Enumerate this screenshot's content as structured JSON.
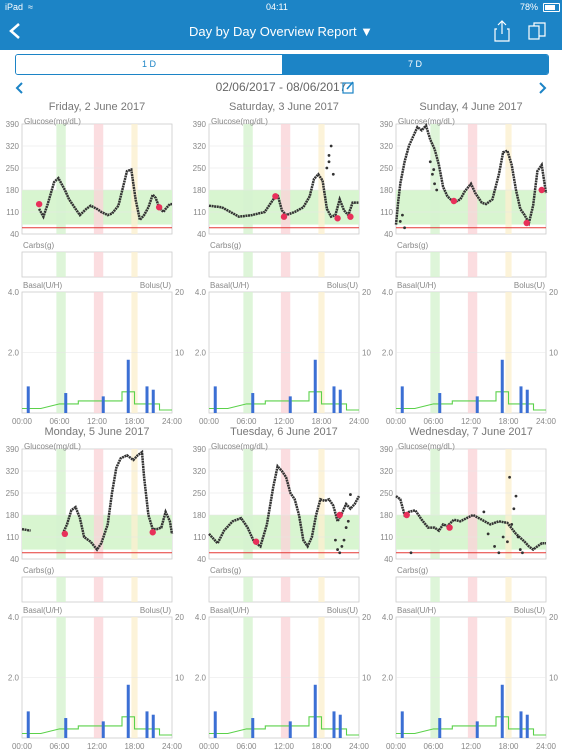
{
  "status": {
    "device": "iPad",
    "wifi_icon": "wifi-icon",
    "time": "04:11",
    "battery": "78%"
  },
  "nav": {
    "title": "Day by Day Overview Report ▼",
    "back_icon": "back-chevron-icon",
    "share_icon": "share-icon",
    "pages_icon": "pages-icon"
  },
  "tabs": [
    {
      "label": "1 D",
      "active": false
    },
    {
      "label": "7 D",
      "active": true
    }
  ],
  "date_range": "02/06/2017 - 08/06/2017",
  "labels": {
    "glucose": "Glucose(mg/dL)",
    "carbs": "Carbs(g)",
    "basal": "Basal(U/H)",
    "bolus": "Bolus(U)"
  },
  "glucose_ticks": [
    "390",
    "320",
    "250",
    "180",
    "110",
    "40"
  ],
  "basal_ticks": [
    "4.0",
    "2.0"
  ],
  "bolus_ticks": [
    "20",
    "10"
  ],
  "time_ticks": [
    "00:00",
    "06:00",
    "12:00",
    "18:00",
    "24:00"
  ],
  "colors": {
    "accent": "#1c84c6",
    "target_band": "#d8f5d0",
    "low_line": "#e53935",
    "glucose": "#333333",
    "basal": "#5bd14a",
    "bolus": "#3b6fd4",
    "highlight": "#e8305a"
  },
  "days": [
    {
      "title": "Friday, 2 June 2017",
      "glucose": [
        [
          0,
          null
        ],
        [
          0.2,
          null
        ],
        [
          0.35,
          null
        ],
        [
          0.4,
          120
        ],
        [
          0.5,
          95
        ],
        [
          0.6,
          135
        ],
        [
          0.75,
          205
        ],
        [
          0.85,
          218
        ],
        [
          1,
          180
        ],
        [
          1.1,
          150
        ],
        [
          1.25,
          120
        ],
        [
          1.35,
          100
        ],
        [
          1.5,
          120
        ],
        [
          1.6,
          130
        ],
        [
          1.75,
          120
        ],
        [
          1.85,
          110
        ],
        [
          2,
          100
        ],
        [
          2.1,
          105
        ],
        [
          2.25,
          130
        ],
        [
          2.35,
          185
        ],
        [
          2.45,
          240
        ],
        [
          2.55,
          245
        ],
        [
          2.65,
          150
        ],
        [
          2.75,
          85
        ],
        [
          2.85,
          100
        ],
        [
          2.95,
          125
        ],
        [
          3.05,
          165
        ],
        [
          3.12,
          155
        ],
        [
          3.2,
          125
        ],
        [
          3.3,
          110
        ],
        [
          3.35,
          120
        ],
        [
          3.45,
          135
        ],
        [
          3.5,
          135
        ]
      ],
      "pins": [
        [
          0.4,
          135
        ],
        [
          3.2,
          125
        ]
      ]
    },
    {
      "title": "Saturday, 3 June 2017",
      "glucose": [
        [
          0,
          130
        ],
        [
          0.3,
          125
        ],
        [
          0.7,
          95
        ],
        [
          1,
          100
        ],
        [
          1.3,
          110
        ],
        [
          1.5,
          150
        ],
        [
          1.6,
          165
        ],
        [
          1.7,
          115
        ],
        [
          1.8,
          100
        ],
        [
          2,
          110
        ],
        [
          2.2,
          125
        ],
        [
          2.35,
          160
        ],
        [
          2.45,
          215
        ],
        [
          2.55,
          230
        ],
        [
          2.65,
          210
        ],
        [
          2.75,
          120
        ],
        [
          2.85,
          95
        ],
        [
          2.95,
          100
        ],
        [
          3.05,
          150
        ],
        [
          3.15,
          115
        ],
        [
          3.25,
          100
        ],
        [
          3.35,
          140
        ],
        [
          3.5,
          140
        ]
      ],
      "pins": [
        [
          1.55,
          160
        ],
        [
          1.75,
          95
        ],
        [
          3.0,
          90
        ],
        [
          3.3,
          95
        ]
      ],
      "scatter": [
        [
          2.75,
          250
        ],
        [
          2.8,
          290
        ],
        [
          2.85,
          320
        ],
        [
          2.8,
          270
        ],
        [
          2.9,
          230
        ]
      ]
    },
    {
      "title": "Sunday, 4 June 2017",
      "glucose": [
        [
          0,
          70
        ],
        [
          0.05,
          140
        ],
        [
          0.1,
          200
        ],
        [
          0.2,
          270
        ],
        [
          0.3,
          320
        ],
        [
          0.4,
          350
        ],
        [
          0.5,
          380
        ],
        [
          0.6,
          370
        ],
        [
          0.7,
          385
        ],
        [
          0.8,
          340
        ],
        [
          0.9,
          310
        ],
        [
          1.0,
          260
        ],
        [
          1.1,
          190
        ],
        [
          1.2,
          160
        ],
        [
          1.35,
          140
        ],
        [
          1.5,
          150
        ],
        [
          1.6,
          175
        ],
        [
          1.75,
          200
        ],
        [
          1.85,
          170
        ],
        [
          2.0,
          140
        ],
        [
          2.1,
          135
        ],
        [
          2.25,
          150
        ],
        [
          2.4,
          230
        ],
        [
          2.5,
          300
        ],
        [
          2.6,
          305
        ],
        [
          2.7,
          260
        ],
        [
          2.8,
          180
        ],
        [
          2.9,
          120
        ],
        [
          3.0,
          100
        ],
        [
          3.1,
          75
        ],
        [
          3.2,
          130
        ],
        [
          3.3,
          240
        ],
        [
          3.4,
          260
        ],
        [
          3.5,
          170
        ]
      ],
      "pins": [
        [
          1.35,
          145
        ],
        [
          3.05,
          75
        ],
        [
          3.4,
          180
        ]
      ],
      "scatter": [
        [
          0.1,
          80
        ],
        [
          0.15,
          100
        ],
        [
          0.2,
          60
        ],
        [
          0.85,
          230
        ],
        [
          0.9,
          200
        ],
        [
          0.95,
          180
        ],
        [
          0.8,
          270
        ],
        [
          0.88,
          245
        ]
      ]
    },
    {
      "title": "Monday, 5 June 2017",
      "glucose": [
        [
          0,
          135
        ],
        [
          0.2,
          130
        ],
        [
          0.3,
          null
        ],
        [
          0.9,
          null
        ],
        [
          0.95,
          120
        ],
        [
          1.05,
          150
        ],
        [
          1.15,
          195
        ],
        [
          1.25,
          205
        ],
        [
          1.35,
          170
        ],
        [
          1.45,
          110
        ],
        [
          1.6,
          95
        ],
        [
          1.75,
          70
        ],
        [
          1.85,
          90
        ],
        [
          2.0,
          150
        ],
        [
          2.1,
          250
        ],
        [
          2.2,
          330
        ],
        [
          2.3,
          360
        ],
        [
          2.45,
          370
        ],
        [
          2.6,
          355
        ],
        [
          2.7,
          370
        ],
        [
          2.8,
          380
        ],
        [
          2.85,
          300
        ],
        [
          2.95,
          180
        ],
        [
          3.05,
          135
        ],
        [
          3.15,
          135
        ],
        [
          3.25,
          140
        ],
        [
          3.35,
          190
        ],
        [
          3.45,
          160
        ],
        [
          3.5,
          120
        ]
      ],
      "pins": [
        [
          1.0,
          120
        ],
        [
          3.05,
          125
        ]
      ]
    },
    {
      "title": "Tuesday, 6 June 2017",
      "glucose": [
        [
          0,
          120
        ],
        [
          0.2,
          90
        ],
        [
          0.35,
          130
        ],
        [
          0.55,
          160
        ],
        [
          0.75,
          170
        ],
        [
          0.9,
          140
        ],
        [
          1.05,
          95
        ],
        [
          1.2,
          80
        ],
        [
          1.35,
          150
        ],
        [
          1.5,
          270
        ],
        [
          1.6,
          335
        ],
        [
          1.7,
          320
        ],
        [
          1.8,
          300
        ],
        [
          1.9,
          250
        ],
        [
          2.0,
          230
        ],
        [
          2.1,
          180
        ],
        [
          2.2,
          100
        ],
        [
          2.3,
          80
        ],
        [
          2.4,
          110
        ],
        [
          2.5,
          180
        ],
        [
          2.6,
          230
        ],
        [
          2.7,
          225
        ],
        [
          2.8,
          230
        ],
        [
          2.9,
          210
        ],
        [
          3.0,
          160
        ],
        [
          3.1,
          185
        ],
        [
          3.2,
          215
        ],
        [
          3.3,
          200
        ],
        [
          3.4,
          215
        ],
        [
          3.5,
          240
        ]
      ],
      "pins": [
        [
          1.1,
          95
        ],
        [
          3.05,
          180
        ]
      ],
      "scatter": [
        [
          2.95,
          100
        ],
        [
          3.0,
          70
        ],
        [
          3.05,
          60
        ],
        [
          3.1,
          80
        ],
        [
          3.15,
          100
        ],
        [
          3.2,
          140
        ],
        [
          3.25,
          160
        ],
        [
          3.3,
          245
        ]
      ]
    },
    {
      "title": "Wednesday, 7 June 2017",
      "glucose": [
        [
          0,
          240
        ],
        [
          0.1,
          230
        ],
        [
          0.2,
          180
        ],
        [
          0.3,
          190
        ],
        [
          0.45,
          195
        ],
        [
          0.6,
          165
        ],
        [
          0.75,
          140
        ],
        [
          0.9,
          140
        ],
        [
          1.0,
          130
        ],
        [
          1.1,
          150
        ],
        [
          1.2,
          145
        ],
        [
          1.35,
          165
        ],
        [
          1.5,
          160
        ],
        [
          1.65,
          170
        ],
        [
          1.8,
          180
        ],
        [
          2.0,
          165
        ],
        [
          2.2,
          150
        ],
        [
          2.4,
          160
        ],
        [
          2.6,
          155
        ],
        [
          2.8,
          120
        ],
        [
          3.0,
          95
        ],
        [
          3.1,
          80
        ],
        [
          3.2,
          70
        ],
        [
          3.3,
          80
        ],
        [
          3.4,
          90
        ],
        [
          3.5,
          90
        ]
      ],
      "pins": [
        [
          0.25,
          180
        ],
        [
          1.25,
          140
        ]
      ],
      "scatter": [
        [
          0.35,
          60
        ],
        [
          2.05,
          190
        ],
        [
          2.15,
          120
        ],
        [
          2.3,
          80
        ],
        [
          2.4,
          60
        ],
        [
          2.5,
          110
        ],
        [
          2.6,
          95
        ],
        [
          2.7,
          150
        ],
        [
          2.65,
          300
        ],
        [
          2.75,
          200
        ],
        [
          2.85,
          110
        ],
        [
          2.9,
          70
        ],
        [
          2.95,
          60
        ],
        [
          2.8,
          240
        ]
      ]
    }
  ]
}
